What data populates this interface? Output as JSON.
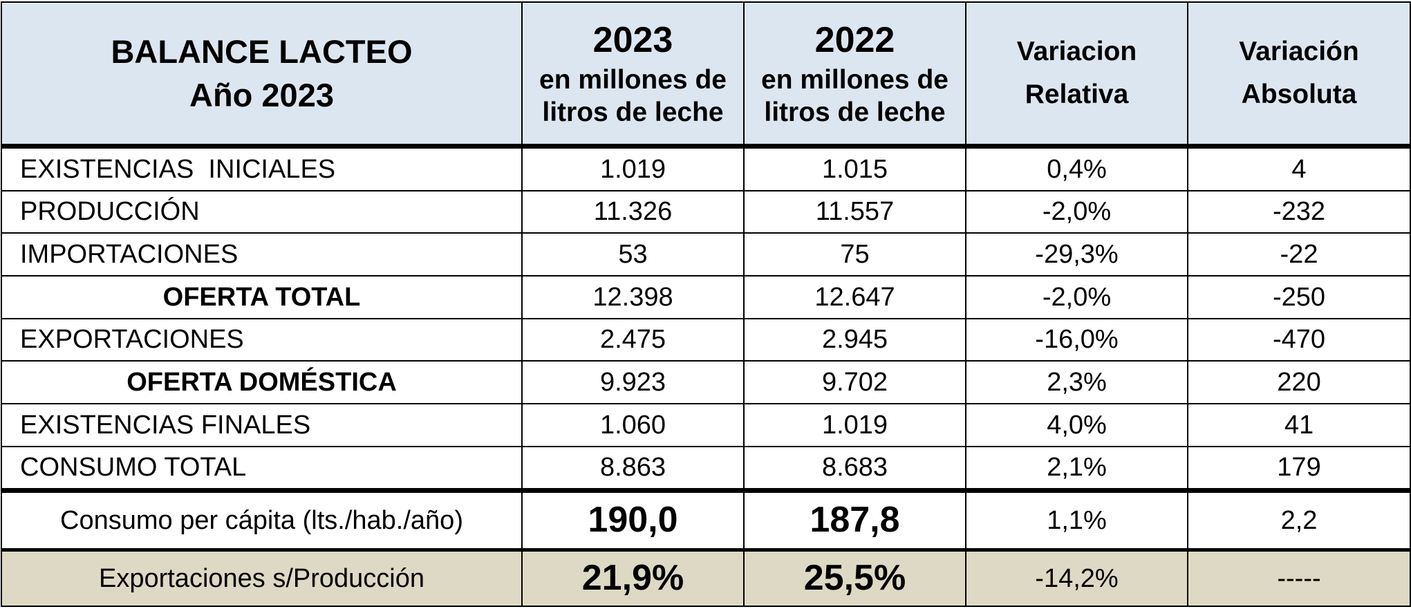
{
  "header": {
    "title_line1": "BALANCE LACTEO",
    "title_line2": "Año 2023",
    "col_2023_year": "2023",
    "col_2023_unit_line1": "en millones de",
    "col_2023_unit_line2": "litros de leche",
    "col_2022_year": "2022",
    "col_2022_unit_line1": "en millones de",
    "col_2022_unit_line2": "litros de leche",
    "col_var_rel_line1": "Variacion",
    "col_var_rel_line2": "Relativa",
    "col_var_abs_line1": "Variación",
    "col_var_abs_line2": "Absoluta"
  },
  "rows": [
    {
      "label": "EXISTENCIAS  INICIALES",
      "v2023": "1.019",
      "v2022": "1.015",
      "rel": "0,4%",
      "abs": "4"
    },
    {
      "label": "PRODUCCIÓN",
      "v2023": "11.326",
      "v2022": "11.557",
      "rel": "-2,0%",
      "abs": "-232"
    },
    {
      "label": "IMPORTACIONES",
      "v2023": "53",
      "v2022": "75",
      "rel": "-29,3%",
      "abs": "-22"
    },
    {
      "label": "OFERTA TOTAL",
      "v2023": "12.398",
      "v2022": "12.647",
      "rel": "-2,0%",
      "abs": "-250"
    },
    {
      "label": "EXPORTACIONES",
      "v2023": "2.475",
      "v2022": "2.945",
      "rel": "-16,0%",
      "abs": "-470"
    },
    {
      "label": "OFERTA DOMÉSTICA",
      "v2023": "9.923",
      "v2022": "9.702",
      "rel": "2,3%",
      "abs": "220"
    },
    {
      "label": "EXISTENCIAS FINALES",
      "v2023": "1.060",
      "v2022": "1.019",
      "rel": "4,0%",
      "abs": "41"
    },
    {
      "label": "CONSUMO TOTAL",
      "v2023": "8.863",
      "v2022": "8.683",
      "rel": "2,1%",
      "abs": "179"
    }
  ],
  "per_capita": {
    "label": "Consumo per cápita (lts./hab./año)",
    "v2023": "190,0",
    "v2022": "187,8",
    "rel": "1,1%",
    "abs": "2,2"
  },
  "exports_ratio": {
    "label": "Exportaciones s/Producción",
    "v2023": "21,9%",
    "v2022": "25,5%",
    "rel": "-14,2%",
    "abs": "-----"
  },
  "colors": {
    "header_bg": "#dce6f1",
    "footer_bg": "#ddd9c4",
    "border": "#000000"
  }
}
